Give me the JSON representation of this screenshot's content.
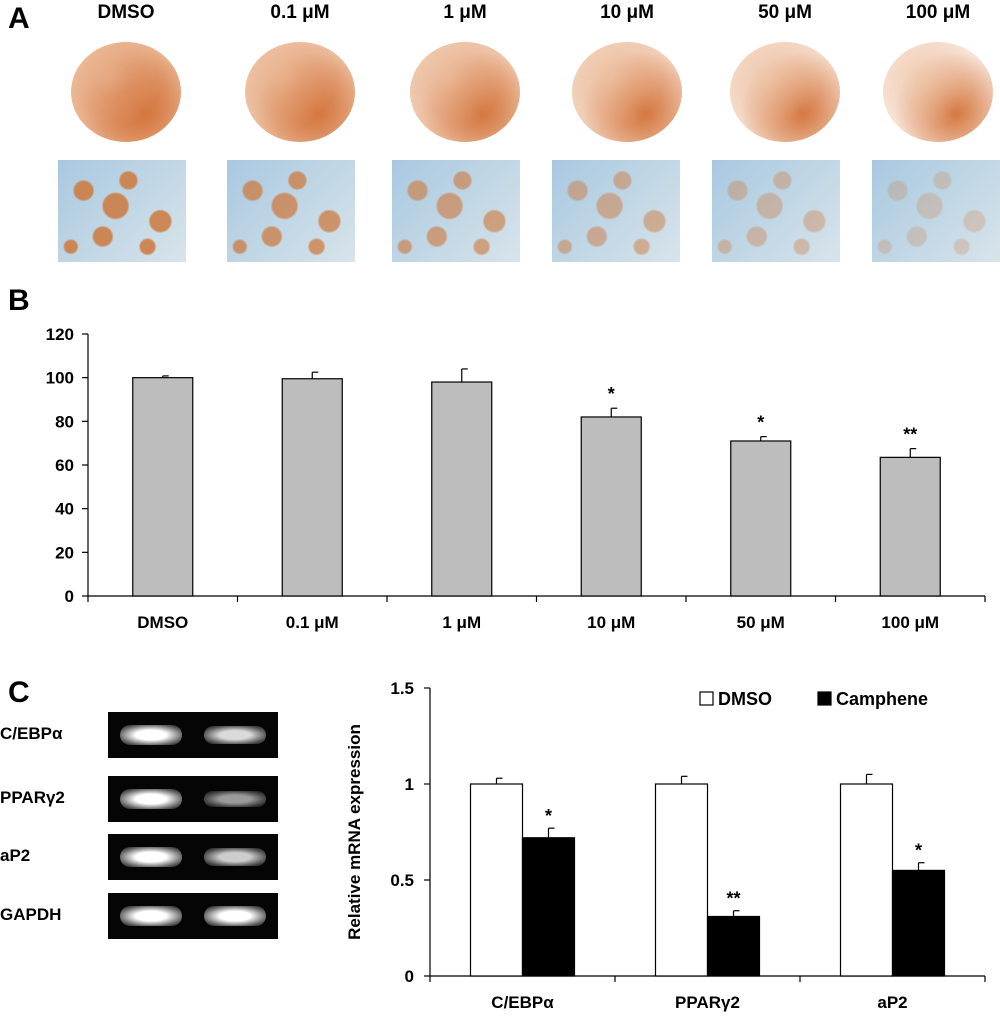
{
  "panel_labels": {
    "a": "A",
    "b": "B",
    "c": "C"
  },
  "panel_a": {
    "conditions": [
      "DMSO",
      "0.1 μM",
      "1 μM",
      "10 μM",
      "50 μM",
      "100 μM"
    ],
    "stain_color": "#d4753d",
    "background_color": "#a8c8e0"
  },
  "chart_data": [
    {
      "type": "bar",
      "categories": [
        "DMSO",
        "0.1 μM",
        "1 μM",
        "10 μM",
        "50 μM",
        "100 μM"
      ],
      "values": [
        100,
        99.5,
        98,
        82,
        71,
        63.5
      ],
      "errors": [
        0.8,
        3,
        6,
        4,
        2,
        4
      ],
      "significance": [
        "",
        "",
        "",
        "*",
        "*",
        "**"
      ],
      "ylim": [
        0,
        120
      ],
      "yticks": [
        "0",
        "20",
        "40",
        "60",
        "80",
        "100",
        "120"
      ],
      "ytick_values": [
        0,
        20,
        40,
        60,
        80,
        100,
        120
      ],
      "bar_color": "#bdbdbd",
      "xlabel": "",
      "ylabel": "",
      "title": ""
    },
    {
      "type": "bar",
      "categories": [
        "C/EBPα",
        "PPARγ2",
        "aP2"
      ],
      "series": [
        {
          "name": "DMSO",
          "values": [
            1.0,
            1.0,
            1.0
          ],
          "errors": [
            0.03,
            0.04,
            0.05
          ],
          "significance": [
            "",
            "",
            ""
          ],
          "color": "#ffffff"
        },
        {
          "name": "Camphene",
          "values": [
            0.72,
            0.31,
            0.55
          ],
          "errors": [
            0.05,
            0.03,
            0.04
          ],
          "significance": [
            "*",
            "**",
            "*"
          ],
          "color": "#000000"
        }
      ],
      "ylim": [
        0,
        1.5
      ],
      "yticks": [
        "0",
        "0.5",
        "1",
        "1.5"
      ],
      "ytick_values": [
        0,
        0.5,
        1,
        1.5
      ],
      "ylabel": "Relative mRNA expression",
      "xlabel": "",
      "title": "",
      "legend": "top-right"
    }
  ],
  "blot": {
    "genes": [
      "C/EBPα",
      "PPARγ2",
      "aP2",
      "GAPDH"
    ],
    "band_intensity": [
      [
        1.0,
        0.85
      ],
      [
        1.0,
        0.6
      ],
      [
        1.0,
        0.8
      ],
      [
        1.0,
        1.0
      ]
    ]
  }
}
